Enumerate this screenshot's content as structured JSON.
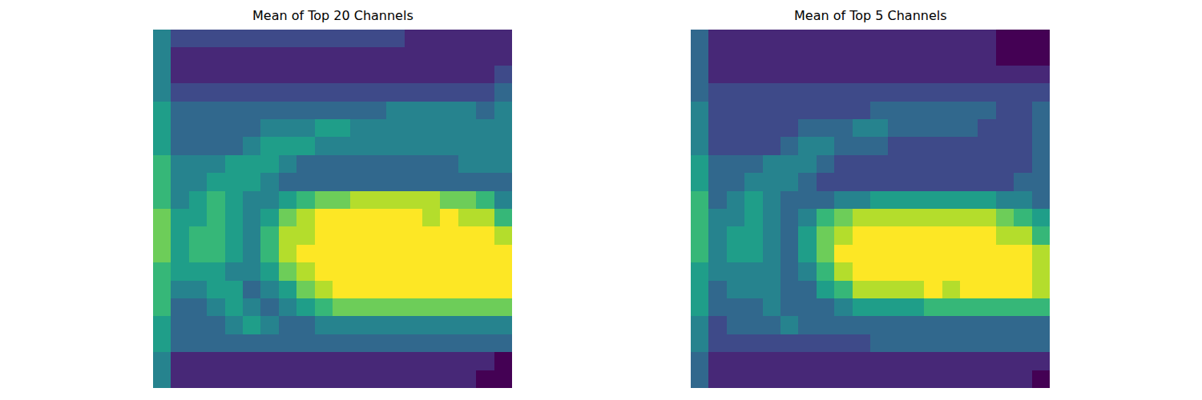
{
  "chart_data": [
    {
      "type": "heatmap",
      "title": "Mean of Top 20 Channels",
      "color": "viridis",
      "zlim": [
        0,
        9
      ],
      "tick_labels": false,
      "z": [
        [
          4,
          2,
          2,
          2,
          2,
          2,
          2,
          2,
          2,
          2,
          2,
          2,
          2,
          2,
          1,
          1,
          1,
          1,
          1,
          1
        ],
        [
          4,
          1,
          1,
          1,
          1,
          1,
          1,
          1,
          1,
          1,
          1,
          1,
          1,
          1,
          1,
          1,
          1,
          1,
          1,
          1
        ],
        [
          4,
          1,
          1,
          1,
          1,
          1,
          1,
          1,
          1,
          1,
          1,
          1,
          1,
          1,
          1,
          1,
          1,
          1,
          1,
          2
        ],
        [
          4,
          2,
          2,
          2,
          2,
          2,
          2,
          2,
          2,
          2,
          2,
          2,
          2,
          2,
          2,
          2,
          2,
          2,
          2,
          3
        ],
        [
          5,
          3,
          3,
          3,
          3,
          3,
          3,
          3,
          3,
          3,
          3,
          3,
          3,
          4,
          4,
          4,
          4,
          4,
          3,
          4
        ],
        [
          5,
          3,
          3,
          3,
          3,
          3,
          4,
          4,
          4,
          5,
          5,
          4,
          4,
          4,
          4,
          4,
          4,
          4,
          4,
          4
        ],
        [
          5,
          3,
          3,
          3,
          3,
          4,
          5,
          5,
          5,
          4,
          4,
          4,
          4,
          4,
          4,
          4,
          4,
          4,
          4,
          4
        ],
        [
          6,
          4,
          4,
          4,
          5,
          5,
          5,
          4,
          3,
          3,
          3,
          3,
          3,
          3,
          3,
          3,
          3,
          4,
          4,
          4
        ],
        [
          6,
          4,
          4,
          5,
          5,
          5,
          4,
          3,
          3,
          3,
          3,
          3,
          3,
          3,
          3,
          3,
          3,
          3,
          3,
          3
        ],
        [
          6,
          4,
          5,
          6,
          5,
          4,
          4,
          5,
          6,
          7,
          7,
          8,
          8,
          8,
          8,
          8,
          7,
          7,
          6,
          4
        ],
        [
          7,
          5,
          5,
          6,
          5,
          4,
          5,
          7,
          8,
          9,
          9,
          9,
          9,
          9,
          9,
          8,
          9,
          8,
          8,
          6
        ],
        [
          7,
          5,
          6,
          6,
          5,
          4,
          6,
          8,
          8,
          9,
          9,
          9,
          9,
          9,
          9,
          9,
          9,
          9,
          9,
          8
        ],
        [
          7,
          5,
          6,
          6,
          5,
          4,
          6,
          8,
          9,
          9,
          9,
          9,
          9,
          9,
          9,
          9,
          9,
          9,
          9,
          9
        ],
        [
          6,
          5,
          5,
          5,
          4,
          4,
          5,
          7,
          8,
          9,
          9,
          9,
          9,
          9,
          9,
          9,
          9,
          9,
          9,
          9
        ],
        [
          6,
          4,
          4,
          5,
          5,
          3,
          4,
          5,
          7,
          8,
          9,
          9,
          9,
          9,
          9,
          9,
          9,
          9,
          9,
          9
        ],
        [
          6,
          3,
          3,
          4,
          5,
          4,
          3,
          4,
          5,
          6,
          7,
          7,
          7,
          7,
          7,
          7,
          7,
          7,
          7,
          7
        ],
        [
          5,
          3,
          3,
          3,
          4,
          5,
          4,
          3,
          3,
          4,
          4,
          4,
          4,
          4,
          4,
          4,
          4,
          4,
          4,
          4
        ],
        [
          5,
          3,
          3,
          3,
          3,
          3,
          3,
          3,
          3,
          3,
          3,
          3,
          3,
          3,
          3,
          3,
          3,
          3,
          3,
          3
        ],
        [
          4,
          1,
          1,
          1,
          1,
          1,
          1,
          1,
          1,
          1,
          1,
          1,
          1,
          1,
          1,
          1,
          1,
          1,
          1,
          0
        ],
        [
          4,
          1,
          1,
          1,
          1,
          1,
          1,
          1,
          1,
          1,
          1,
          1,
          1,
          1,
          1,
          1,
          1,
          1,
          0,
          0
        ]
      ]
    },
    {
      "type": "heatmap",
      "title": "Mean of Top 5 Channels",
      "color": "viridis",
      "zlim": [
        0,
        9
      ],
      "tick_labels": false,
      "z": [
        [
          3,
          1,
          1,
          1,
          1,
          1,
          1,
          1,
          1,
          1,
          1,
          1,
          1,
          1,
          1,
          1,
          1,
          0,
          0,
          0
        ],
        [
          3,
          1,
          1,
          1,
          1,
          1,
          1,
          1,
          1,
          1,
          1,
          1,
          1,
          1,
          1,
          1,
          1,
          0,
          0,
          0
        ],
        [
          3,
          1,
          1,
          1,
          1,
          1,
          1,
          1,
          1,
          1,
          1,
          1,
          1,
          1,
          1,
          1,
          1,
          1,
          1,
          1
        ],
        [
          3,
          2,
          2,
          2,
          2,
          2,
          2,
          2,
          2,
          2,
          2,
          2,
          2,
          2,
          2,
          2,
          2,
          2,
          2,
          2
        ],
        [
          4,
          2,
          2,
          2,
          2,
          2,
          2,
          2,
          2,
          2,
          3,
          3,
          3,
          3,
          3,
          3,
          3,
          2,
          2,
          3
        ],
        [
          4,
          2,
          2,
          2,
          2,
          2,
          3,
          3,
          3,
          4,
          4,
          3,
          3,
          3,
          3,
          3,
          2,
          2,
          2,
          3
        ],
        [
          4,
          2,
          2,
          2,
          2,
          3,
          4,
          4,
          3,
          3,
          3,
          2,
          2,
          2,
          2,
          2,
          2,
          2,
          2,
          3
        ],
        [
          5,
          3,
          3,
          3,
          4,
          4,
          4,
          3,
          2,
          2,
          2,
          2,
          2,
          2,
          2,
          2,
          2,
          2,
          2,
          3
        ],
        [
          5,
          3,
          3,
          4,
          4,
          4,
          3,
          2,
          2,
          2,
          2,
          2,
          2,
          2,
          2,
          2,
          2,
          2,
          3,
          3
        ],
        [
          6,
          3,
          4,
          5,
          4,
          3,
          3,
          3,
          4,
          4,
          5,
          5,
          5,
          5,
          5,
          5,
          5,
          4,
          4,
          3
        ],
        [
          6,
          4,
          4,
          5,
          4,
          3,
          4,
          6,
          7,
          8,
          8,
          8,
          8,
          8,
          8,
          8,
          8,
          7,
          6,
          5
        ],
        [
          6,
          4,
          5,
          5,
          4,
          3,
          5,
          7,
          8,
          9,
          9,
          9,
          9,
          9,
          9,
          9,
          9,
          8,
          8,
          6
        ],
        [
          6,
          4,
          5,
          5,
          4,
          3,
          5,
          7,
          9,
          9,
          9,
          9,
          9,
          9,
          9,
          9,
          9,
          9,
          9,
          8
        ],
        [
          5,
          4,
          4,
          4,
          4,
          3,
          4,
          6,
          8,
          9,
          9,
          9,
          9,
          9,
          9,
          9,
          9,
          9,
          9,
          8
        ],
        [
          5,
          3,
          4,
          4,
          4,
          3,
          3,
          5,
          6,
          8,
          8,
          8,
          8,
          9,
          8,
          9,
          9,
          9,
          9,
          8
        ],
        [
          5,
          3,
          3,
          3,
          4,
          3,
          3,
          3,
          4,
          5,
          5,
          5,
          5,
          6,
          6,
          6,
          6,
          6,
          6,
          6
        ],
        [
          4,
          2,
          3,
          3,
          3,
          4,
          3,
          3,
          3,
          3,
          3,
          3,
          3,
          3,
          3,
          3,
          3,
          3,
          3,
          3
        ],
        [
          4,
          2,
          2,
          2,
          2,
          2,
          2,
          2,
          2,
          2,
          3,
          3,
          3,
          3,
          3,
          3,
          3,
          3,
          3,
          3
        ],
        [
          3,
          1,
          1,
          1,
          1,
          1,
          1,
          1,
          1,
          1,
          1,
          1,
          1,
          1,
          1,
          1,
          1,
          1,
          1,
          1
        ],
        [
          3,
          1,
          1,
          1,
          1,
          1,
          1,
          1,
          1,
          1,
          1,
          1,
          1,
          1,
          1,
          1,
          1,
          1,
          1,
          0
        ]
      ]
    }
  ]
}
